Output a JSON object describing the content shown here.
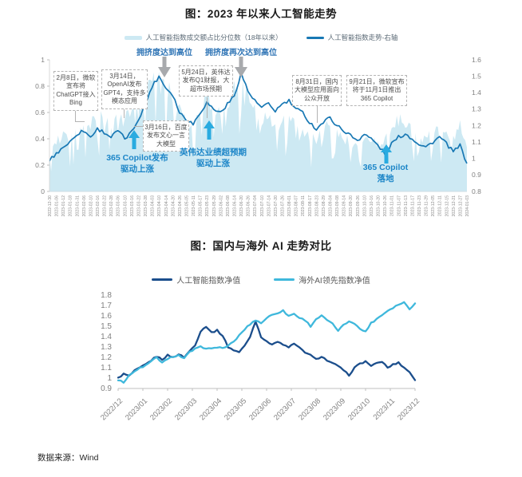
{
  "page": {
    "source_note": "数据来源：Wind"
  },
  "colors": {
    "area": "#cde9f3",
    "index_line": "#1878b4",
    "navy_line": "#1b4e8c",
    "cyan_line": "#3fb8dc",
    "grey_arrow": "#a8aaad",
    "cyan_arrow": "#29abe0",
    "peak_text_blue": "#2e74b5",
    "callout_blue": "#1d86c8",
    "axis_text": "#808080"
  },
  "chart_data": [
    {
      "type": "area+line",
      "title": "图：2023 年以来人工智能走势",
      "legend_position": "top",
      "x": [
        "2022-12-30",
        "2023-01-06",
        "2023-01-12",
        "2023-01-18",
        "2023-01-31",
        "2023-02-06",
        "2023-02-10",
        "2023-02-16",
        "2023-02-22",
        "2023-02-28",
        "2023-03-06",
        "2023-03-10",
        "2023-03-16",
        "2023-03-22",
        "2023-03-28",
        "2023-04-03",
        "2023-04-10",
        "2023-04-14",
        "2023-04-20",
        "2023-04-26",
        "2023-05-05",
        "2023-05-11",
        "2023-05-17",
        "2023-05-23",
        "2023-05-29",
        "2023-06-02",
        "2023-06-08",
        "2023-06-14",
        "2023-06-20",
        "2023-06-26",
        "2023-07-04",
        "2023-07-10",
        "2023-07-14",
        "2023-07-20",
        "2023-07-26",
        "2023-08-01",
        "2023-08-07",
        "2023-08-11",
        "2023-08-17",
        "2023-08-23",
        "2023-08-29",
        "2023-09-04",
        "2023-09-08",
        "2023-09-14",
        "2023-09-20",
        "2023-09-26",
        "2023-10-10",
        "2023-10-16",
        "2023-10-20",
        "2023-10-26",
        "2023-11-01",
        "2023-11-07",
        "2023-11-13",
        "2023-11-17",
        "2023-11-23",
        "2023-11-29",
        "2023-12-05",
        "2023-12-11",
        "2023-12-15",
        "2023-12-21",
        "2023-12-27",
        "2024-01-03"
      ],
      "series": [
        {
          "name": "人工智能指数成交额占比分位数（18年以来）",
          "type": "area",
          "axis": "left",
          "values": [
            0.3,
            0.42,
            0.48,
            0.44,
            0.52,
            0.62,
            0.56,
            0.63,
            0.6,
            0.57,
            0.66,
            0.6,
            0.72,
            0.85,
            0.9,
            0.95,
            0.92,
            0.88,
            0.84,
            0.74,
            0.58,
            0.54,
            0.7,
            0.8,
            0.7,
            0.64,
            0.75,
            0.85,
            0.95,
            0.85,
            0.7,
            0.6,
            0.66,
            0.55,
            0.6,
            0.63,
            0.55,
            0.52,
            0.47,
            0.44,
            0.56,
            0.6,
            0.5,
            0.45,
            0.42,
            0.38,
            0.48,
            0.45,
            0.4,
            0.43,
            0.56,
            0.6,
            0.58,
            0.5,
            0.47,
            0.45,
            0.52,
            0.58,
            0.5,
            0.45,
            0.55,
            0.38
          ]
        },
        {
          "name": "人工智能指数走势-右轴",
          "type": "line",
          "axis": "right",
          "values": [
            0.99,
            1.03,
            1.07,
            1.1,
            1.15,
            1.17,
            1.13,
            1.18,
            1.16,
            1.13,
            1.17,
            1.12,
            1.16,
            1.24,
            1.33,
            1.44,
            1.5,
            1.43,
            1.39,
            1.28,
            1.24,
            1.21,
            1.28,
            1.34,
            1.3,
            1.28,
            1.33,
            1.38,
            1.52,
            1.41,
            1.35,
            1.31,
            1.33,
            1.29,
            1.33,
            1.35,
            1.3,
            1.28,
            1.22,
            1.18,
            1.22,
            1.25,
            1.2,
            1.17,
            1.14,
            1.11,
            1.15,
            1.12,
            1.08,
            1.03,
            1.09,
            1.13,
            1.15,
            1.12,
            1.09,
            1.07,
            1.1,
            1.13,
            1.09,
            1.04,
            1.08,
            0.97
          ]
        }
      ],
      "left_axis": {
        "min": 0,
        "max": 1,
        "ticks": [
          "1",
          "0.8",
          "0.6",
          "0.4",
          "0.2",
          "0"
        ]
      },
      "right_axis": {
        "min": 0.8,
        "max": 1.6,
        "ticks": [
          "1.6",
          "1.5",
          "1.4",
          "1.3",
          "1.2",
          "1.1",
          "1",
          "0.9",
          "0.8"
        ]
      },
      "annotations": {
        "event_boxes": [
          {
            "text": "2月8日，微软宣布将ChatGPT接入Bing"
          },
          {
            "text": "3月14日，OpenAI发布GPT4，支持多模态应用"
          },
          {
            "text": "3月16日，百度发布文心一言大模型"
          },
          {
            "text": "5月24日，英伟达发布Q1财报，大超市场预期"
          },
          {
            "text": "8月31日，国内大模型应用面向公众开放"
          },
          {
            "text": "9月21日，微软宣布将于11月1日推出365 Copilot"
          }
        ],
        "peak_labels": [
          {
            "text": "拥挤度达到高位"
          },
          {
            "text": "拥挤度再次达到高位"
          }
        ],
        "up_arrow_labels": [
          {
            "line1": "365 Copilot发布",
            "line2": "驱动上涨"
          },
          {
            "line1": "英伟达业绩超预期",
            "line2": "驱动上涨"
          },
          {
            "line1": "365 Copilot",
            "line2": "落地"
          }
        ]
      }
    },
    {
      "type": "line",
      "title": "图：国内与海外 AI 走势对比",
      "legend_position": "top",
      "x_labels": [
        "2022/12",
        "2023/01",
        "2023/02",
        "2023/03",
        "2023/04",
        "2023/05",
        "2023/06",
        "2023/07",
        "2023/08",
        "2023/09",
        "2023/10",
        "2023/11",
        "2023/12"
      ],
      "series": [
        {
          "name": "人工智能指数净值",
          "values": [
            1.0,
            1.04,
            1.02,
            1.07,
            1.1,
            1.13,
            1.17,
            1.21,
            1.18,
            1.22,
            1.2,
            1.23,
            1.2,
            1.26,
            1.32,
            1.45,
            1.5,
            1.44,
            1.46,
            1.41,
            1.3,
            1.27,
            1.25,
            1.31,
            1.4,
            1.55,
            1.4,
            1.35,
            1.33,
            1.35,
            1.32,
            1.3,
            1.33,
            1.29,
            1.25,
            1.22,
            1.18,
            1.21,
            1.17,
            1.14,
            1.12,
            1.07,
            1.03,
            1.1,
            1.14,
            1.16,
            1.12,
            1.14,
            1.16,
            1.1,
            1.13,
            1.15,
            1.1,
            1.06,
            0.98
          ]
        },
        {
          "name": "海外AI领先指数净值",
          "values": [
            0.98,
            0.96,
            1.03,
            1.06,
            1.1,
            1.12,
            1.16,
            1.2,
            1.15,
            1.18,
            1.21,
            1.22,
            1.19,
            1.25,
            1.28,
            1.3,
            1.29,
            1.28,
            1.3,
            1.29,
            1.31,
            1.35,
            1.41,
            1.47,
            1.52,
            1.56,
            1.53,
            1.58,
            1.61,
            1.63,
            1.65,
            1.6,
            1.62,
            1.58,
            1.56,
            1.5,
            1.57,
            1.6,
            1.56,
            1.52,
            1.46,
            1.51,
            1.55,
            1.53,
            1.47,
            1.45,
            1.53,
            1.57,
            1.61,
            1.65,
            1.68,
            1.71,
            1.73,
            1.67,
            1.72
          ]
        }
      ],
      "y_axis": {
        "min": 0.9,
        "max": 1.8,
        "ticks": [
          "1.8",
          "1.7",
          "1.6",
          "1.5",
          "1.4",
          "1.3",
          "1.2",
          "1.1",
          "1",
          "0.9"
        ]
      }
    }
  ]
}
